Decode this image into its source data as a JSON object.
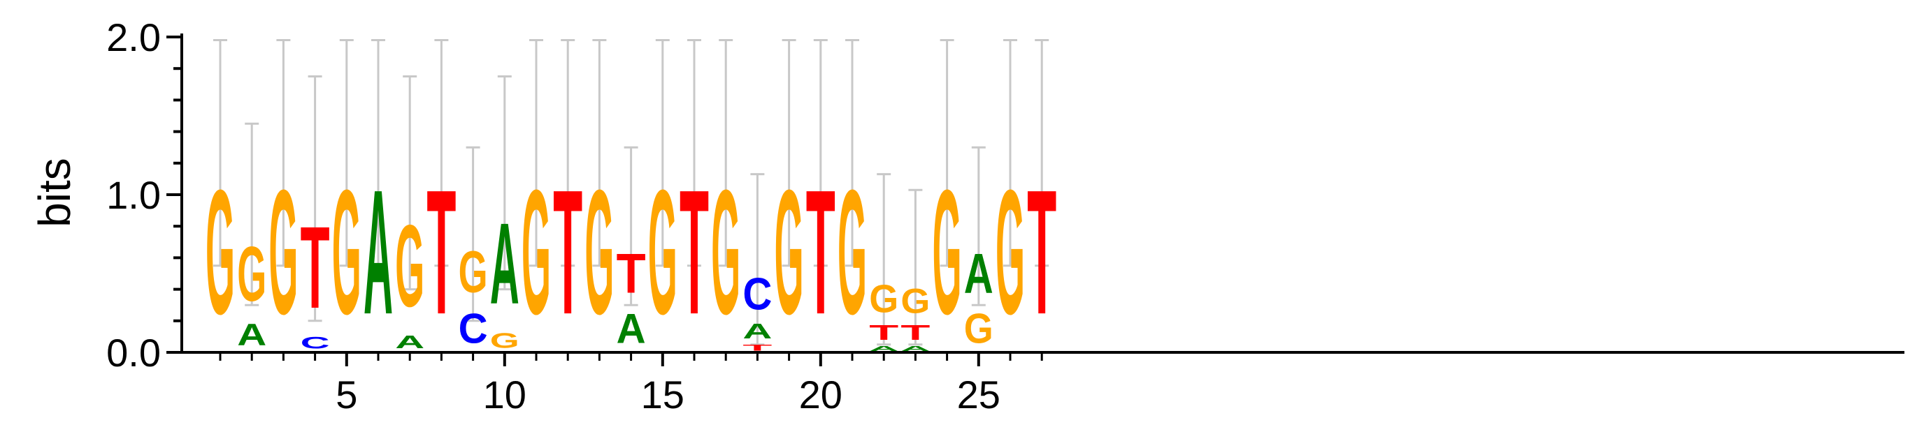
{
  "chart_data": {
    "type": "sequence-logo",
    "ylabel": "bits",
    "ylim": [
      0,
      2
    ],
    "y_ticks": [
      "0.0",
      "1.0",
      "2.0"
    ],
    "x_ticks": [
      5,
      10,
      15,
      20,
      25
    ],
    "error_bars": true,
    "colors": {
      "A": "#008000",
      "C": "#0000ff",
      "G": "#ffa500",
      "T": "#ff0000",
      "errorbar": "#c8c8c8"
    },
    "positions": [
      {
        "pos": 1,
        "stack": [
          [
            "G",
            1.26
          ]
        ],
        "err": [
          0.55,
          1.98
        ]
      },
      {
        "pos": 2,
        "stack": [
          [
            "A",
            0.22
          ],
          [
            "G",
            0.55
          ]
        ],
        "err": [
          0.3,
          1.45
        ]
      },
      {
        "pos": 3,
        "stack": [
          [
            "G",
            1.26
          ]
        ],
        "err": [
          0.55,
          1.98
        ]
      },
      {
        "pos": 4,
        "stack": [
          [
            "C",
            0.12
          ],
          [
            "T",
            0.83
          ]
        ],
        "err": [
          0.2,
          1.75
        ]
      },
      {
        "pos": 5,
        "stack": [
          [
            "G",
            1.26
          ]
        ],
        "err": [
          0.55,
          1.98
        ]
      },
      {
        "pos": 6,
        "stack": [
          [
            "A",
            1.26
          ]
        ],
        "err": [
          0.55,
          1.98
        ]
      },
      {
        "pos": 7,
        "stack": [
          [
            "A",
            0.13
          ],
          [
            "G",
            0.83
          ]
        ],
        "err": [
          0.4,
          1.75
        ]
      },
      {
        "pos": 8,
        "stack": [
          [
            "T",
            1.26
          ]
        ],
        "err": [
          0.55,
          1.98
        ]
      },
      {
        "pos": 9,
        "stack": [
          [
            "C",
            0.3
          ],
          [
            "G",
            0.42
          ]
        ],
        "err": [
          0.2,
          1.3
        ]
      },
      {
        "pos": 10,
        "stack": [
          [
            "G",
            0.15
          ],
          [
            "A",
            0.82
          ]
        ],
        "err": [
          0.4,
          1.75
        ]
      },
      {
        "pos": 11,
        "stack": [
          [
            "G",
            1.26
          ]
        ],
        "err": [
          0.55,
          1.98
        ]
      },
      {
        "pos": 12,
        "stack": [
          [
            "T",
            1.26
          ]
        ],
        "err": [
          0.55,
          1.98
        ]
      },
      {
        "pos": 13,
        "stack": [
          [
            "G",
            1.26
          ]
        ],
        "err": [
          0.55,
          1.98
        ]
      },
      {
        "pos": 14,
        "stack": [
          [
            "A",
            0.3
          ],
          [
            "T",
            0.4
          ]
        ],
        "err": [
          0.3,
          1.3
        ]
      },
      {
        "pos": 15,
        "stack": [
          [
            "G",
            1.26
          ]
        ],
        "err": [
          0.55,
          1.98
        ]
      },
      {
        "pos": 16,
        "stack": [
          [
            "T",
            1.26
          ]
        ],
        "err": [
          0.55,
          1.98
        ]
      },
      {
        "pos": 17,
        "stack": [
          [
            "G",
            1.26
          ]
        ],
        "err": [
          0.55,
          1.98
        ]
      },
      {
        "pos": 18,
        "stack": [
          [
            "T",
            0.06
          ],
          [
            "A",
            0.15
          ],
          [
            "C",
            0.32
          ]
        ],
        "err": [
          0.05,
          1.13
        ]
      },
      {
        "pos": 19,
        "stack": [
          [
            "G",
            1.26
          ]
        ],
        "err": [
          0.55,
          1.98
        ]
      },
      {
        "pos": 20,
        "stack": [
          [
            "T",
            1.26
          ]
        ],
        "err": [
          0.55,
          1.98
        ]
      },
      {
        "pos": 21,
        "stack": [
          [
            "G",
            1.26
          ]
        ],
        "err": [
          0.55,
          1.98
        ]
      },
      {
        "pos": 22,
        "stack": [
          [
            "A",
            0.05
          ],
          [
            "T",
            0.15
          ],
          [
            "G",
            0.28
          ]
        ],
        "err": [
          0.05,
          1.13
        ]
      },
      {
        "pos": 23,
        "stack": [
          [
            "A",
            0.05
          ],
          [
            "T",
            0.15
          ],
          [
            "G",
            0.25
          ]
        ],
        "err": [
          0.05,
          1.03
        ]
      },
      {
        "pos": 24,
        "stack": [
          [
            "G",
            1.26
          ]
        ],
        "err": [
          0.55,
          1.98
        ]
      },
      {
        "pos": 25,
        "stack": [
          [
            "G",
            0.3
          ],
          [
            "A",
            0.4
          ]
        ],
        "err": [
          0.3,
          1.3
        ]
      },
      {
        "pos": 26,
        "stack": [
          [
            "G",
            1.26
          ]
        ],
        "err": [
          0.55,
          1.98
        ]
      },
      {
        "pos": 27,
        "stack": [
          [
            "T",
            1.26
          ]
        ],
        "err": [
          0.55,
          1.98
        ]
      }
    ]
  }
}
